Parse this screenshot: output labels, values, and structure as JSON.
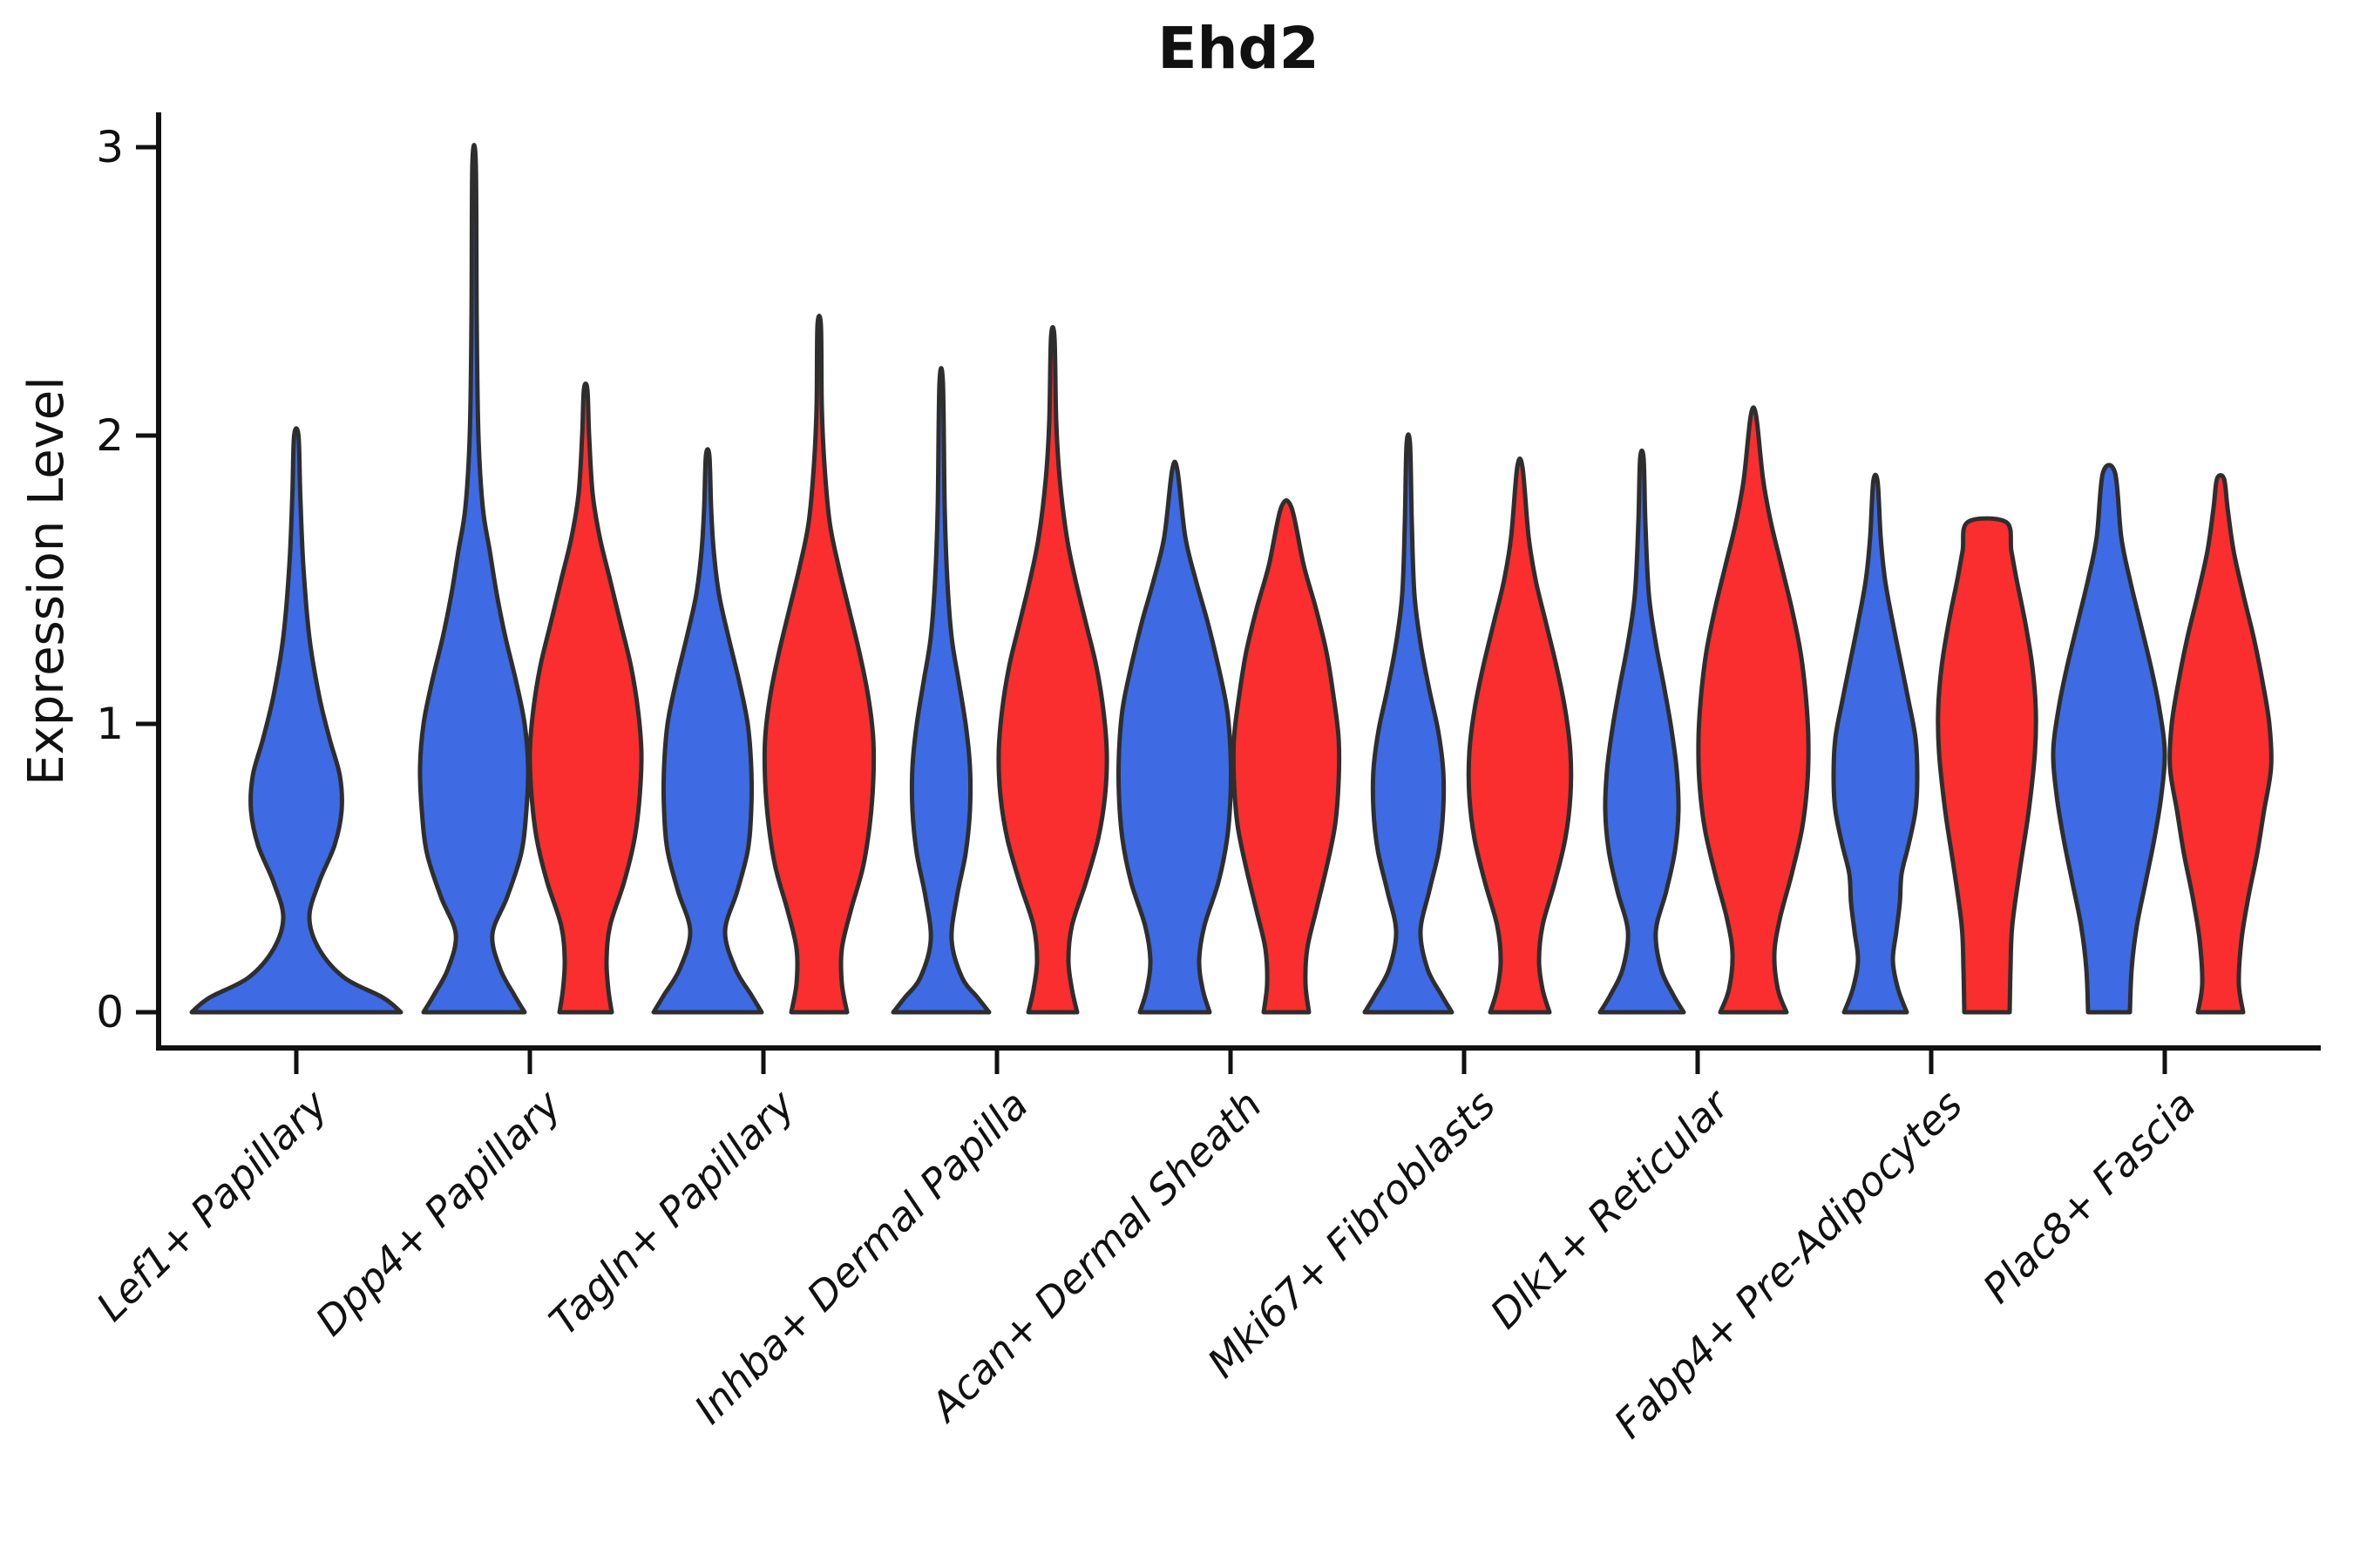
{
  "title": "Ehd2",
  "colors": {
    "blue_fill": "#3E6AE3",
    "red_fill": "#FA2E2E",
    "violin_outline": "#2E2E2E",
    "axis": "#111111",
    "background": "#FFFFFF"
  },
  "chart_data": {
    "type": "violin",
    "title": "Ehd2",
    "xlabel": "",
    "ylabel": "Expression Level",
    "ylim": [
      0,
      3
    ],
    "yticks": [
      0,
      1,
      2,
      3
    ],
    "y_tick_labels": [
      "0",
      "1",
      "2",
      "3"
    ],
    "grid": false,
    "legend": "none",
    "categories": [
      "Lef1+ Papillary",
      "Dpp4+ Papillary",
      "Tagln+ Papillary",
      "Inhba+ Dermal Papilla",
      "Acan+ Dermal Sheath",
      "Mki67+ Fibroblasts",
      "Dlk1+ Reticular",
      "Fabp4+ Pre-Adipocytes",
      "Plac8+ Fascia"
    ],
    "series_colors": {
      "blue": "#3E6AE3",
      "red": "#FA2E2E"
    },
    "violins": [
      {
        "category_index": 0,
        "group": "blue",
        "offset": 0,
        "max_value": 2.0,
        "profile": [
          [
            0,
            120
          ],
          [
            0.05,
            100
          ],
          [
            0.12,
            55
          ],
          [
            0.22,
            26
          ],
          [
            0.33,
            15
          ],
          [
            0.45,
            26
          ],
          [
            0.58,
            44
          ],
          [
            0.7,
            52
          ],
          [
            0.82,
            50
          ],
          [
            0.95,
            38
          ],
          [
            1.1,
            26
          ],
          [
            1.3,
            15
          ],
          [
            1.55,
            8
          ],
          [
            1.8,
            4.5
          ],
          [
            2.0,
            2.5
          ]
        ]
      },
      {
        "category_index": 1,
        "group": "blue",
        "offset": -64,
        "max_value": 2.94,
        "profile": [
          [
            0,
            58
          ],
          [
            0.06,
            46
          ],
          [
            0.15,
            30
          ],
          [
            0.27,
            21
          ],
          [
            0.4,
            38
          ],
          [
            0.55,
            54
          ],
          [
            0.7,
            60
          ],
          [
            0.85,
            62
          ],
          [
            1.0,
            58
          ],
          [
            1.15,
            48
          ],
          [
            1.3,
            36
          ],
          [
            1.45,
            26
          ],
          [
            1.6,
            18
          ],
          [
            1.75,
            10
          ],
          [
            2.0,
            5
          ],
          [
            2.4,
            3
          ],
          [
            2.94,
            2
          ]
        ]
      },
      {
        "category_index": 1,
        "group": "red",
        "offset": 64,
        "max_value": 2.16,
        "profile": [
          [
            0,
            30
          ],
          [
            0.08,
            26
          ],
          [
            0.18,
            24
          ],
          [
            0.3,
            28
          ],
          [
            0.45,
            44
          ],
          [
            0.6,
            56
          ],
          [
            0.75,
            62
          ],
          [
            0.9,
            64
          ],
          [
            1.05,
            60
          ],
          [
            1.2,
            52
          ],
          [
            1.35,
            40
          ],
          [
            1.5,
            28
          ],
          [
            1.65,
            16
          ],
          [
            1.8,
            8
          ],
          [
            2.0,
            4
          ],
          [
            2.16,
            2
          ]
        ]
      },
      {
        "category_index": 2,
        "group": "blue",
        "offset": -64,
        "max_value": 1.93,
        "profile": [
          [
            0,
            62
          ],
          [
            0.06,
            50
          ],
          [
            0.15,
            32
          ],
          [
            0.28,
            20
          ],
          [
            0.42,
            34
          ],
          [
            0.56,
            46
          ],
          [
            0.7,
            50
          ],
          [
            0.85,
            50
          ],
          [
            1.0,
            46
          ],
          [
            1.15,
            36
          ],
          [
            1.3,
            24
          ],
          [
            1.45,
            13
          ],
          [
            1.6,
            7
          ],
          [
            1.75,
            4
          ],
          [
            1.93,
            2
          ]
        ]
      },
      {
        "category_index": 2,
        "group": "red",
        "offset": 64,
        "max_value": 2.38,
        "profile": [
          [
            0,
            32
          ],
          [
            0.1,
            26
          ],
          [
            0.22,
            26
          ],
          [
            0.35,
            36
          ],
          [
            0.5,
            50
          ],
          [
            0.65,
            58
          ],
          [
            0.8,
            62
          ],
          [
            0.95,
            62
          ],
          [
            1.1,
            56
          ],
          [
            1.25,
            46
          ],
          [
            1.4,
            34
          ],
          [
            1.55,
            22
          ],
          [
            1.7,
            12
          ],
          [
            1.9,
            6
          ],
          [
            2.1,
            3
          ],
          [
            2.38,
            2
          ]
        ]
      },
      {
        "category_index": 3,
        "group": "blue",
        "offset": -64,
        "max_value": 2.18,
        "profile": [
          [
            0,
            55
          ],
          [
            0.05,
            42
          ],
          [
            0.12,
            24
          ],
          [
            0.25,
            12
          ],
          [
            0.4,
            18
          ],
          [
            0.55,
            28
          ],
          [
            0.7,
            33
          ],
          [
            0.85,
            33
          ],
          [
            1.0,
            28
          ],
          [
            1.15,
            20
          ],
          [
            1.3,
            12
          ],
          [
            1.5,
            7
          ],
          [
            1.75,
            4
          ],
          [
            2.18,
            2
          ]
        ]
      },
      {
        "category_index": 3,
        "group": "red",
        "offset": 64,
        "max_value": 2.34,
        "profile": [
          [
            0,
            28
          ],
          [
            0.08,
            22
          ],
          [
            0.18,
            18
          ],
          [
            0.3,
            22
          ],
          [
            0.45,
            38
          ],
          [
            0.6,
            52
          ],
          [
            0.75,
            60
          ],
          [
            0.9,
            62
          ],
          [
            1.05,
            58
          ],
          [
            1.2,
            50
          ],
          [
            1.35,
            38
          ],
          [
            1.5,
            26
          ],
          [
            1.65,
            16
          ],
          [
            1.85,
            8
          ],
          [
            2.05,
            4
          ],
          [
            2.34,
            2
          ]
        ]
      },
      {
        "category_index": 4,
        "group": "blue",
        "offset": -64,
        "max_value": 1.88,
        "profile": [
          [
            0,
            40
          ],
          [
            0.08,
            32
          ],
          [
            0.18,
            28
          ],
          [
            0.3,
            34
          ],
          [
            0.45,
            50
          ],
          [
            0.6,
            60
          ],
          [
            0.75,
            64
          ],
          [
            0.9,
            64
          ],
          [
            1.05,
            60
          ],
          [
            1.2,
            50
          ],
          [
            1.35,
            38
          ],
          [
            1.5,
            24
          ],
          [
            1.65,
            12
          ],
          [
            1.88,
            3
          ]
        ]
      },
      {
        "category_index": 4,
        "group": "red",
        "offset": 64,
        "max_value": 1.75,
        "profile": [
          [
            0,
            26
          ],
          [
            0.1,
            22
          ],
          [
            0.22,
            24
          ],
          [
            0.35,
            34
          ],
          [
            0.5,
            46
          ],
          [
            0.65,
            56
          ],
          [
            0.8,
            60
          ],
          [
            0.95,
            60
          ],
          [
            1.1,
            54
          ],
          [
            1.25,
            46
          ],
          [
            1.4,
            34
          ],
          [
            1.55,
            20
          ],
          [
            1.75,
            6
          ]
        ]
      },
      {
        "category_index": 5,
        "group": "blue",
        "offset": -64,
        "max_value": 1.97,
        "profile": [
          [
            0,
            50
          ],
          [
            0.06,
            38
          ],
          [
            0.15,
            22
          ],
          [
            0.28,
            14
          ],
          [
            0.42,
            24
          ],
          [
            0.56,
            35
          ],
          [
            0.7,
            40
          ],
          [
            0.84,
            40
          ],
          [
            0.98,
            34
          ],
          [
            1.12,
            24
          ],
          [
            1.28,
            14
          ],
          [
            1.45,
            7
          ],
          [
            1.7,
            4
          ],
          [
            1.97,
            2
          ]
        ]
      },
      {
        "category_index": 5,
        "group": "red",
        "offset": 64,
        "max_value": 1.89,
        "profile": [
          [
            0,
            34
          ],
          [
            0.08,
            26
          ],
          [
            0.18,
            22
          ],
          [
            0.3,
            26
          ],
          [
            0.45,
            40
          ],
          [
            0.6,
            52
          ],
          [
            0.75,
            58
          ],
          [
            0.9,
            58
          ],
          [
            1.05,
            52
          ],
          [
            1.2,
            42
          ],
          [
            1.35,
            30
          ],
          [
            1.5,
            18
          ],
          [
            1.65,
            10
          ],
          [
            1.89,
            3
          ]
        ]
      },
      {
        "category_index": 6,
        "group": "blue",
        "offset": -64,
        "max_value": 1.92,
        "profile": [
          [
            0,
            48
          ],
          [
            0.06,
            36
          ],
          [
            0.15,
            22
          ],
          [
            0.28,
            16
          ],
          [
            0.42,
            28
          ],
          [
            0.56,
            38
          ],
          [
            0.7,
            42
          ],
          [
            0.84,
            40
          ],
          [
            0.98,
            34
          ],
          [
            1.12,
            26
          ],
          [
            1.28,
            16
          ],
          [
            1.45,
            8
          ],
          [
            1.7,
            4
          ],
          [
            1.92,
            2
          ]
        ]
      },
      {
        "category_index": 6,
        "group": "red",
        "offset": 64,
        "max_value": 2.07,
        "profile": [
          [
            0,
            38
          ],
          [
            0.08,
            28
          ],
          [
            0.2,
            24
          ],
          [
            0.32,
            30
          ],
          [
            0.48,
            44
          ],
          [
            0.64,
            56
          ],
          [
            0.8,
            62
          ],
          [
            0.95,
            63
          ],
          [
            1.1,
            60
          ],
          [
            1.25,
            54
          ],
          [
            1.4,
            44
          ],
          [
            1.55,
            32
          ],
          [
            1.7,
            20
          ],
          [
            1.85,
            11
          ],
          [
            2.07,
            3
          ]
        ]
      },
      {
        "category_index": 7,
        "group": "blue",
        "offset": -64,
        "max_value": 1.84,
        "profile": [
          [
            0,
            36
          ],
          [
            0.08,
            26
          ],
          [
            0.18,
            20
          ],
          [
            0.28,
            24
          ],
          [
            0.38,
            28
          ],
          [
            0.48,
            30
          ],
          [
            0.58,
            38
          ],
          [
            0.7,
            46
          ],
          [
            0.82,
            48
          ],
          [
            0.95,
            46
          ],
          [
            1.08,
            38
          ],
          [
            1.2,
            30
          ],
          [
            1.35,
            20
          ],
          [
            1.5,
            11
          ],
          [
            1.65,
            6
          ],
          [
            1.84,
            2.5
          ]
        ]
      },
      {
        "category_index": 7,
        "group": "red",
        "offset": 64,
        "max_value": 1.7,
        "profile": [
          [
            0,
            26
          ],
          [
            0.15,
            27
          ],
          [
            0.3,
            29
          ],
          [
            0.5,
            38
          ],
          [
            0.7,
            48
          ],
          [
            0.9,
            55
          ],
          [
            1.05,
            56
          ],
          [
            1.2,
            52
          ],
          [
            1.35,
            44
          ],
          [
            1.5,
            34
          ],
          [
            1.6,
            28
          ],
          [
            1.7,
            22
          ]
        ]
      },
      {
        "category_index": 8,
        "group": "blue",
        "offset": -64,
        "max_value": 1.87,
        "profile": [
          [
            0,
            24
          ],
          [
            0.15,
            26
          ],
          [
            0.3,
            32
          ],
          [
            0.45,
            42
          ],
          [
            0.6,
            52
          ],
          [
            0.75,
            60
          ],
          [
            0.9,
            64
          ],
          [
            1.05,
            58
          ],
          [
            1.2,
            48
          ],
          [
            1.35,
            36
          ],
          [
            1.5,
            24
          ],
          [
            1.65,
            14
          ],
          [
            1.87,
            7
          ]
        ]
      },
      {
        "category_index": 8,
        "group": "red",
        "offset": 64,
        "max_value": 1.85,
        "profile": [
          [
            0,
            26
          ],
          [
            0.1,
            21
          ],
          [
            0.25,
            24
          ],
          [
            0.4,
            32
          ],
          [
            0.55,
            42
          ],
          [
            0.7,
            50
          ],
          [
            0.85,
            58
          ],
          [
            1.0,
            56
          ],
          [
            1.15,
            48
          ],
          [
            1.3,
            38
          ],
          [
            1.45,
            26
          ],
          [
            1.6,
            15
          ],
          [
            1.75,
            8
          ],
          [
            1.85,
            4
          ]
        ]
      }
    ]
  }
}
